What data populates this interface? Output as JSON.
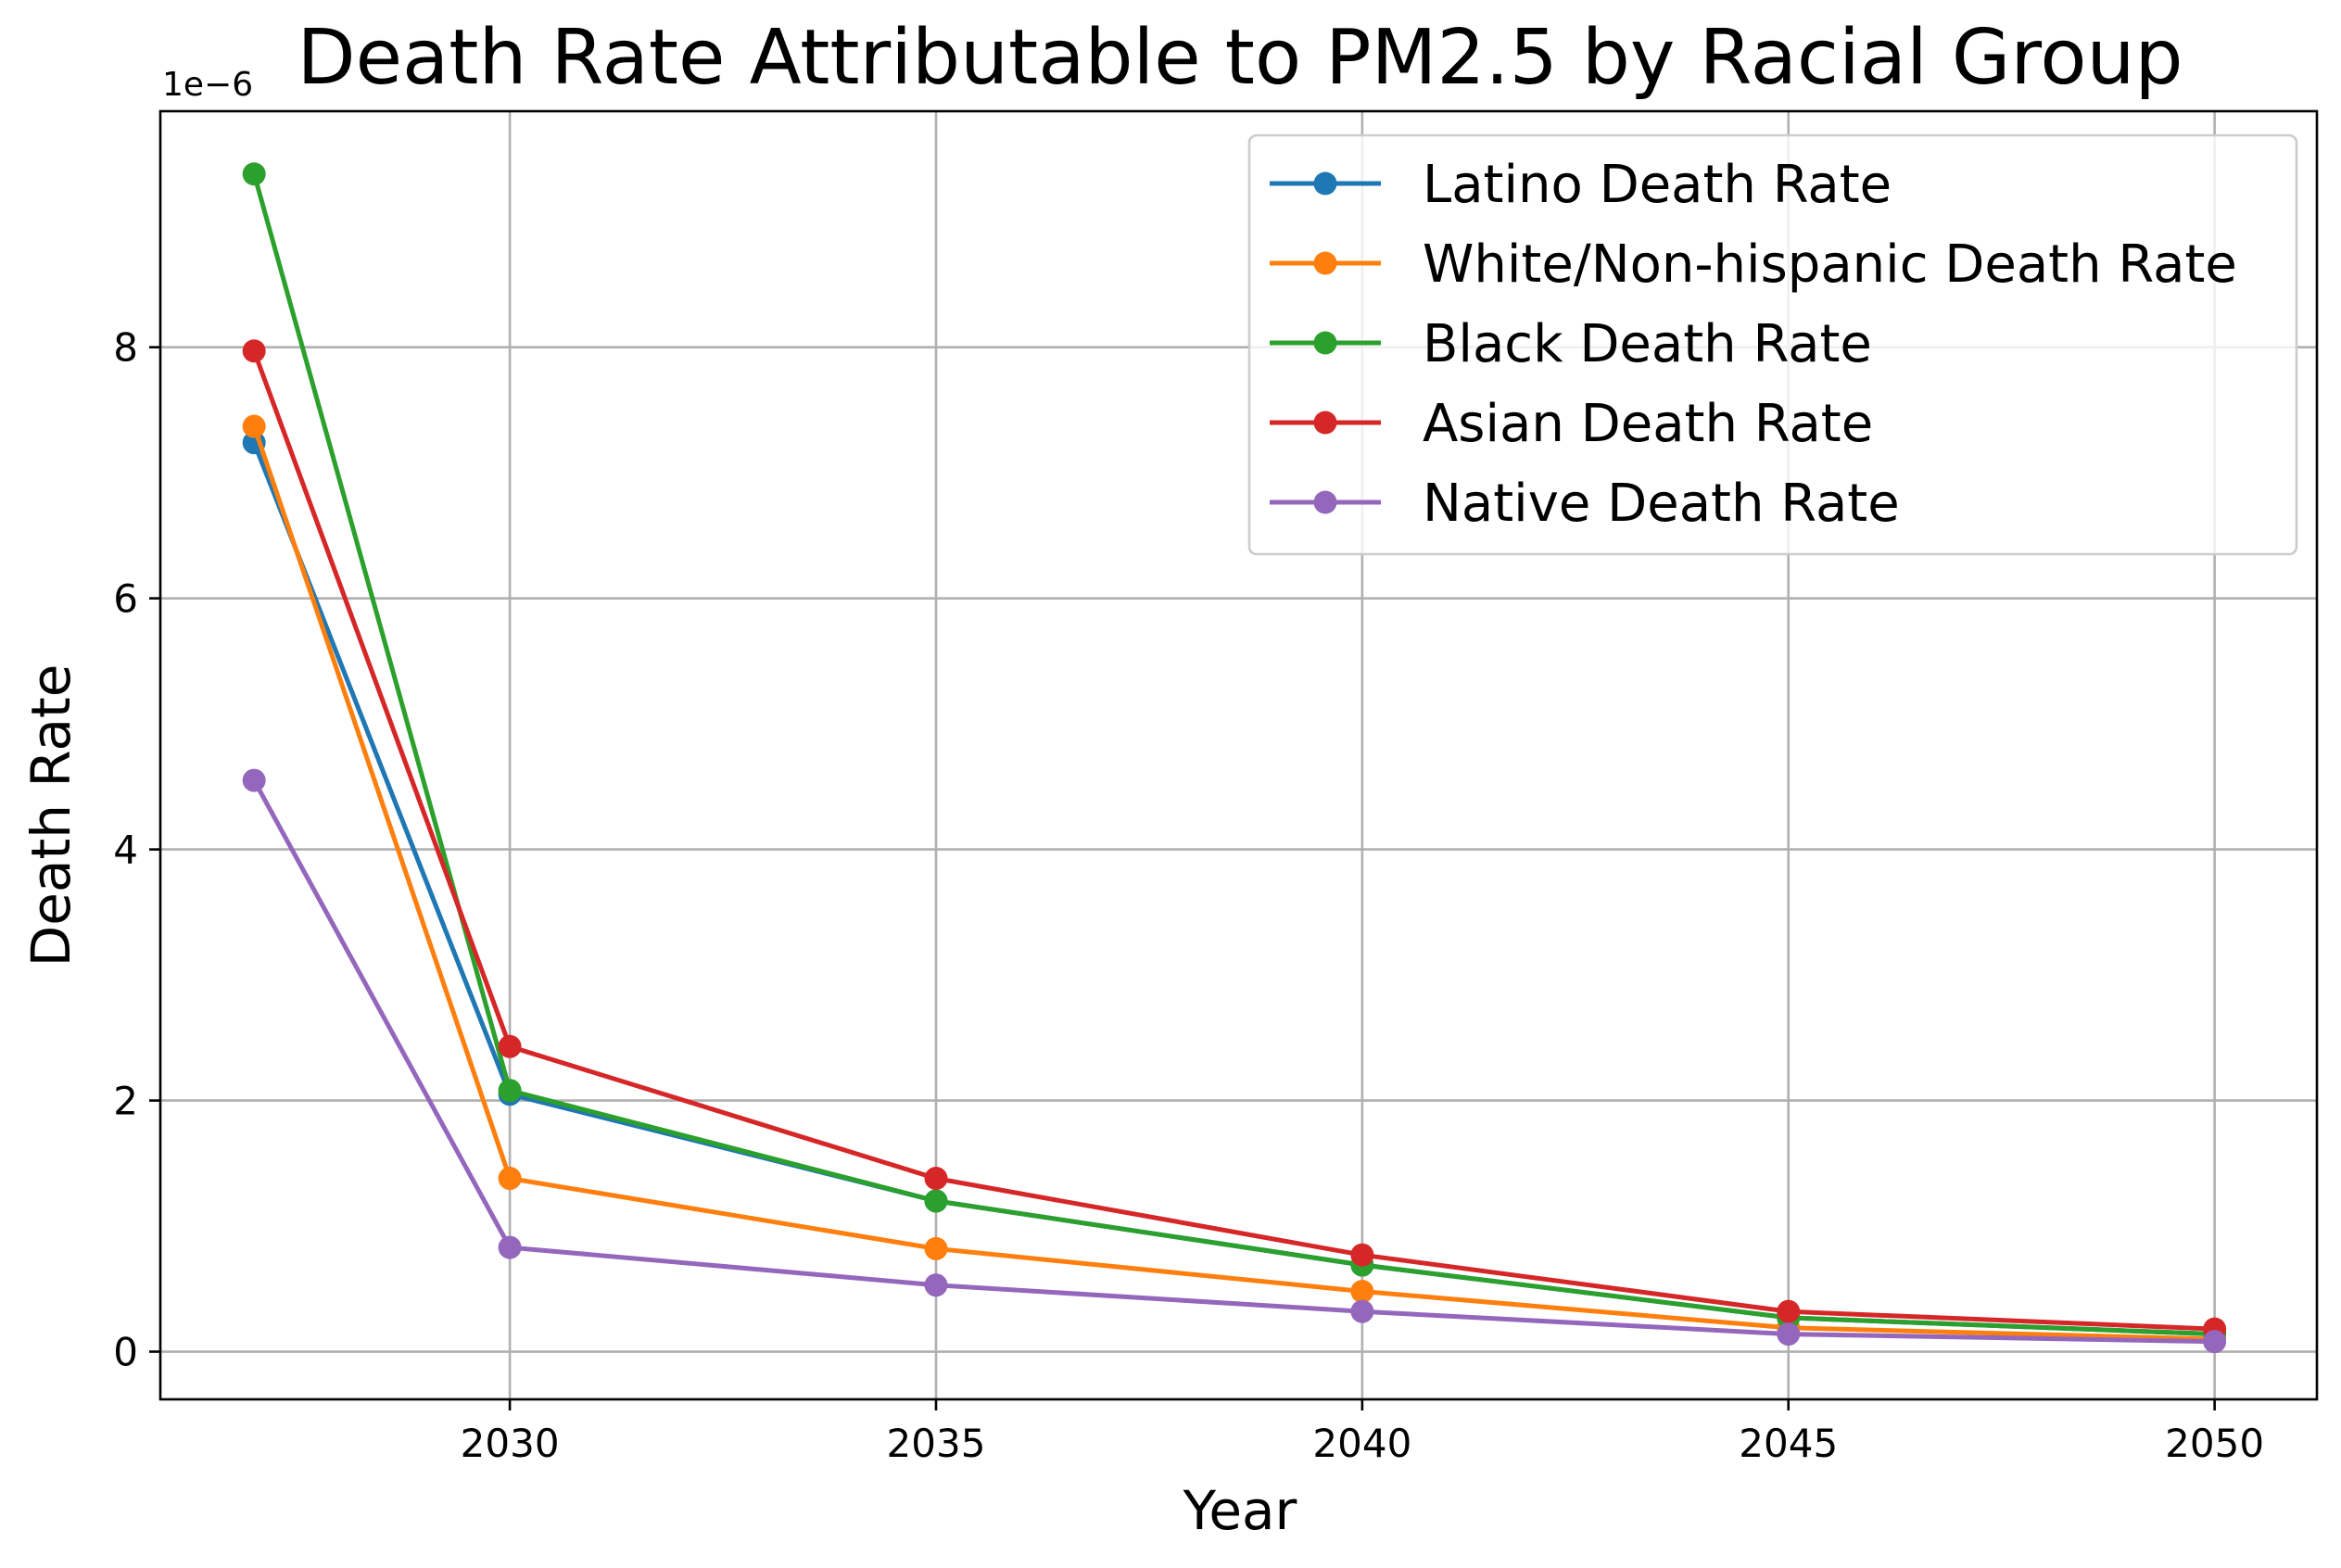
{
  "chart_data": {
    "type": "line",
    "title": "Death Rate Attributable to PM2.5 by Racial Group",
    "xlabel": "Year",
    "ylabel": "Death Rate",
    "y_offset_text": "1e−6",
    "y_scale_factor": 1e-06,
    "xlim": [
      2025.9,
      2051.2
    ],
    "ylim": [
      -0.38,
      9.88
    ],
    "x_ticks": [
      2030,
      2035,
      2040,
      2045,
      2050
    ],
    "y_ticks": [
      0,
      2,
      4,
      6,
      8
    ],
    "grid": true,
    "legend_position": "top-right",
    "x": [
      2027,
      2030,
      2035,
      2040,
      2045,
      2050
    ],
    "series": [
      {
        "name": "Latino Death Rate",
        "color": "#1f77b4",
        "values": [
          7.24,
          2.05,
          1.2,
          0.69,
          0.27,
          0.14
        ]
      },
      {
        "name": "White/Non-hispanic Death Rate",
        "color": "#ff7f0e",
        "values": [
          7.37,
          1.38,
          0.82,
          0.48,
          0.19,
          0.1
        ]
      },
      {
        "name": "Black Death Rate",
        "color": "#2ca02c",
        "values": [
          9.38,
          2.08,
          1.2,
          0.69,
          0.27,
          0.14
        ]
      },
      {
        "name": "Asian Death Rate",
        "color": "#d62728",
        "values": [
          7.97,
          2.43,
          1.38,
          0.77,
          0.32,
          0.18
        ]
      },
      {
        "name": "Native Death Rate",
        "color": "#9467bd",
        "values": [
          4.55,
          0.83,
          0.53,
          0.32,
          0.14,
          0.08
        ]
      }
    ]
  }
}
